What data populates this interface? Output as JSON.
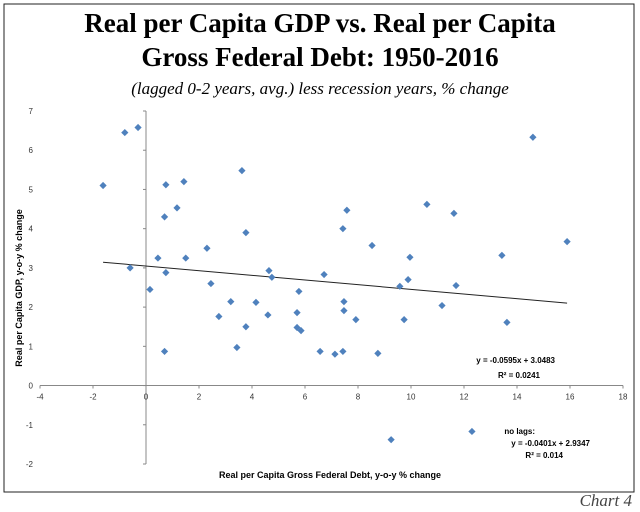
{
  "chart_data": {
    "type": "scatter",
    "title": [
      "Real per Capita GDP vs. Real per Capita",
      "Gross Federal Debt: 1950-2016"
    ],
    "subtitle": "(lagged 0-2 years, avg.) less recession years, % change",
    "x_label": "Real per Capita Gross Federal Debt, y-o-y % change",
    "y_label": "Real per Capita GDP, y-o-y % change",
    "color": "#4f81bd",
    "x": [
      -1.62,
      -0.8,
      -0.3,
      -0.6,
      0.15,
      0.45,
      0.75,
      0.7,
      0.75,
      0.7,
      1.17,
      1.43,
      1.5,
      2.3,
      2.45,
      2.75,
      3.2,
      3.43,
      3.62,
      3.77,
      3.77,
      4.15,
      4.6,
      4.64,
      4.75,
      5.7,
      5.77,
      5.7,
      5.85,
      6.57,
      6.72,
      7.13,
      7.43,
      7.58,
      7.47,
      7.47,
      7.43,
      7.92,
      8.53,
      8.75,
      9.25,
      9.58,
      9.74,
      9.89,
      9.96,
      10.6,
      11.17,
      11.62,
      11.7,
      12.3,
      13.43,
      13.62,
      14.6,
      15.89
    ],
    "values": [
      5.1,
      6.45,
      6.58,
      3.0,
      2.45,
      3.25,
      5.12,
      4.3,
      2.88,
      0.87,
      4.53,
      5.2,
      3.25,
      3.5,
      2.6,
      1.76,
      2.14,
      0.97,
      5.48,
      3.9,
      1.5,
      2.12,
      1.8,
      2.93,
      2.76,
      1.86,
      2.4,
      1.48,
      1.4,
      0.87,
      2.83,
      0.8,
      4.0,
      4.47,
      2.14,
      1.91,
      0.87,
      1.68,
      3.57,
      0.82,
      -1.38,
      2.53,
      1.68,
      2.7,
      3.27,
      4.62,
      2.04,
      4.39,
      2.55,
      -1.17,
      3.32,
      1.61,
      6.33,
      3.67
    ],
    "trendline": {
      "slope": -0.0595,
      "intercept": 3.0483,
      "label": "y = -0.0595x + 3.0483",
      "r2_label": "R² = 0.0241"
    },
    "annotation": [
      "no lags:",
      "y = -0.0401x + 2.9347",
      "R² = 0.014"
    ],
    "xlim": [
      -4,
      18
    ],
    "xticks": [
      -4,
      -2,
      0,
      2,
      4,
      6,
      8,
      10,
      12,
      14,
      16,
      18
    ],
    "ylim": [
      -2,
      7
    ],
    "yticks": [
      -2,
      -1,
      0,
      1,
      2,
      3,
      4,
      5,
      6,
      7
    ]
  },
  "footer": "Chart 4"
}
